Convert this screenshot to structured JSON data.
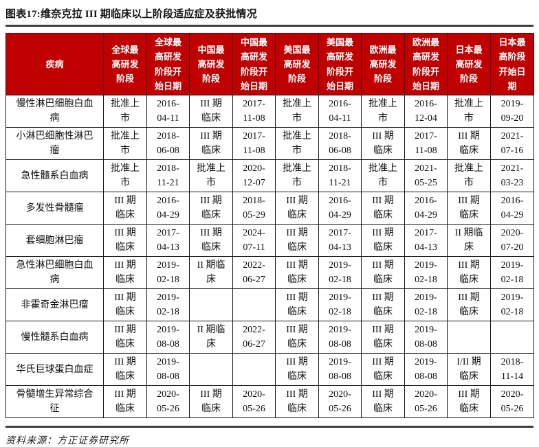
{
  "meta": {
    "title": "图表17:维奈克拉 III 期临床以上阶段适应症及获批情况",
    "source": "资料来源：方正证券研究所"
  },
  "colors": {
    "header_bg": "#c00000",
    "header_text": "#ffffff",
    "grid_line": "#161616",
    "rule_line": "#3d3d3d"
  },
  "table": {
    "headers": [
      "疾病",
      "全球最高研发阶段",
      "全球最高研发阶段开始日期",
      "中国最高研发阶段",
      "中国最高研发阶段开始日期",
      "美国最高研发阶段",
      "美国最高研发阶段开始日期",
      "欧洲最高研发阶段",
      "欧洲最高研发阶段开始日期",
      "日本最高研发阶段",
      "日本最高阶段开始日期"
    ],
    "rows": [
      [
        "慢性淋巴细胞白血病",
        "批准上市",
        "2016-04-11",
        "III 期临床",
        "2017-11-08",
        "批准上市",
        "2016-04-11",
        "批准上市",
        "2016-12-04",
        "批准上市",
        "2019-09-20"
      ],
      [
        "小淋巴细胞性淋巴瘤",
        "批准上市",
        "2018-06-08",
        "III 期临床",
        "2017-11-08",
        "批准上市",
        "2018-06-08",
        "III 期临床",
        "2017-11-08",
        "III 期临床",
        "2021-07-16"
      ],
      [
        "急性髓系白血病",
        "批准上市",
        "2018-11-21",
        "批准上市",
        "2020-12-07",
        "批准上市",
        "2018-11-21",
        "批准上市",
        "2021-05-25",
        "批准上市",
        "2021-03-23"
      ],
      [
        "多发性骨髓瘤",
        "III 期临床",
        "2016-04-29",
        "III 期临床",
        "2018-05-29",
        "III 期临床",
        "2016-04-29",
        "III 期临床",
        "2016-04-29",
        "III 期临床",
        "2016-04-29"
      ],
      [
        "套细胞淋巴瘤",
        "III 期临床",
        "2017-04-13",
        "III 期临床",
        "2024-07-11",
        "III 期临床",
        "2017-04-13",
        "III 期临床",
        "2017-04-13",
        "II 期临床",
        "2020-07-20"
      ],
      [
        "急性淋巴细胞白血病",
        "III 期临床",
        "2019-02-18",
        "II 期临床",
        "2022-06-27",
        "III 期临床",
        "2019-02-18",
        "III 期临床",
        "2019-02-18",
        "III 期临床",
        "2019-02-18"
      ],
      [
        "非霍奇金淋巴瘤",
        "III 期临床",
        "2019-02-18",
        "",
        "",
        "III 期临床",
        "2019-02-18",
        "III 期临床",
        "2019-02-18",
        "III 期临床",
        "2019-02-18"
      ],
      [
        "慢性髓系白血病",
        "III 期临床",
        "2019-08-08",
        "II 期临床",
        "2022-06-27",
        "III 期临床",
        "2019-08-08",
        "III 期临床",
        "2019-08-08",
        "",
        ""
      ],
      [
        "华氏巨球蛋白血症",
        "III 期临床",
        "2019-08-08",
        "",
        "",
        "III 期临床",
        "2019-08-08",
        "III 期临床",
        "2019-08-08",
        "I/II 期临床",
        "2018-11-14"
      ],
      [
        "骨髓增生异常综合征",
        "III 期临床",
        "2020-05-26",
        "III 期临床",
        "2020-05-26",
        "III 期临床",
        "2020-05-26",
        "III 期临床",
        "2020-05-26",
        "III 期临床",
        "2020-05-26"
      ]
    ]
  }
}
